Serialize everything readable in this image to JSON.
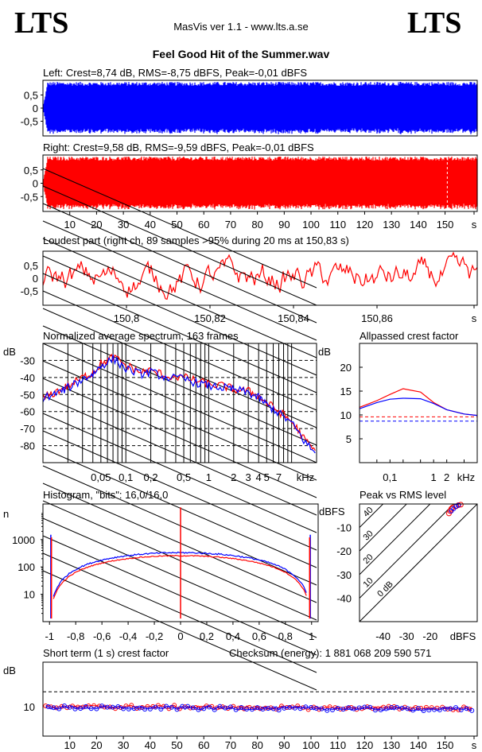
{
  "header": {
    "logo_left": "LTS",
    "logo_right": "LTS",
    "app_title": "MasVis ver 1.1 - www.lts.a.se",
    "file_title": "Feel Good Hit of the Summer.wav"
  },
  "colors": {
    "left": "#0000ff",
    "right": "#ff0000",
    "grid": "#000000",
    "background": "#ffffff"
  },
  "chart_data": [
    {
      "id": "left_wave",
      "type": "area",
      "title": "Left: Crest=8,74 dB, RMS=-8,75 dBFS, Peak=-0,01 dBFS",
      "yticks": [
        "0,5",
        "0",
        "-0,5"
      ],
      "ylim": [
        -1,
        1
      ],
      "xlim": [
        0,
        162
      ],
      "color": "#0000ff",
      "description_series": "waveform"
    },
    {
      "id": "right_wave",
      "type": "area",
      "title": "Right: Crest=9,58 dB, RMS=-9,59 dBFS, Peak=-0,01 dBFS",
      "yticks": [
        "0,5",
        "0",
        "-0,5"
      ],
      "ylim": [
        -1,
        1
      ],
      "xlim": [
        0,
        162
      ],
      "xticks": [
        "10",
        "20",
        "30",
        "40",
        "50",
        "60",
        "70",
        "80",
        "90",
        "100",
        "110",
        "120",
        "130",
        "140",
        "150",
        "s"
      ],
      "marker_x": 150.83,
      "color": "#ff0000"
    },
    {
      "id": "loudest",
      "type": "line",
      "title": "Loudest part (right ch, 89 samples >95% during 20 ms at 150,83 s)",
      "yticks": [
        "0,5",
        "0",
        "-0,5"
      ],
      "ylim": [
        -1,
        1
      ],
      "xlim": [
        150.78,
        150.884
      ],
      "xticks": [
        "150,8",
        "150,82",
        "150,84",
        "150,86",
        "s"
      ],
      "color": "#ff0000"
    },
    {
      "id": "spectrum",
      "type": "line",
      "title": "Normalized average spectrum, 163 frames",
      "ylabel": "dB",
      "yticks": [
        "-30",
        "-40",
        "-50",
        "-60",
        "-70",
        "-80"
      ],
      "ylim": [
        -90,
        -20
      ],
      "xticks": [
        "0,05",
        "0,1",
        "0,2",
        "0,5",
        "1",
        "2",
        "3",
        "4",
        "5",
        "7",
        "kHz"
      ],
      "x_scale": "log",
      "x": [
        0.01,
        0.015,
        0.02,
        0.03,
        0.04,
        0.05,
        0.07,
        0.1,
        0.15,
        0.2,
        0.3,
        0.5,
        0.7,
        1,
        1.5,
        2,
        3,
        4,
        5,
        7,
        10,
        14,
        20
      ],
      "series": [
        {
          "color": "#ff0000",
          "values": [
            -52,
            -48,
            -45,
            -40,
            -37,
            -32,
            -28,
            -33,
            -37,
            -36,
            -39,
            -40,
            -42,
            -44,
            -45,
            -47,
            -48,
            -51,
            -55,
            -60,
            -66,
            -76,
            -85
          ]
        },
        {
          "color": "#0000ff",
          "values": [
            -52,
            -49,
            -46,
            -41,
            -38,
            -33,
            -29,
            -35,
            -38,
            -37,
            -40,
            -41,
            -43,
            -45,
            -46,
            -47,
            -49,
            -52,
            -56,
            -61,
            -67,
            -77,
            -86
          ]
        }
      ]
    },
    {
      "id": "allpass",
      "type": "line",
      "title": "Allpassed crest factor",
      "ylabel": "dB",
      "yticks": [
        "20",
        "15",
        "10",
        "5"
      ],
      "ylim": [
        0,
        25
      ],
      "xticks": [
        "0,1",
        "1",
        "2",
        "kHz"
      ],
      "x_scale": "log",
      "x": [
        0.02,
        0.05,
        0.1,
        0.2,
        0.5,
        1,
        2,
        5,
        10
      ],
      "series": [
        {
          "color": "#ff0000",
          "values": [
            11.6,
            13,
            14.3,
            15.5,
            14.8,
            12.6,
            11.1,
            10.2,
            9.9
          ]
        },
        {
          "color": "#0000ff",
          "values": [
            11.3,
            12.6,
            13.3,
            13.5,
            13.4,
            12.4,
            11.1,
            10.2,
            9.9
          ]
        }
      ],
      "reference_lines": [
        {
          "color": "#ff0000",
          "value": 9.6
        },
        {
          "color": "#0000ff",
          "value": 8.7
        }
      ]
    },
    {
      "id": "histogram",
      "type": "line",
      "title": "Histogram, \"bits\": 16,0/16,0",
      "ylabel": "n",
      "yticks": [
        "1000",
        "100",
        "10"
      ],
      "y_scale": "log",
      "xticks": [
        "-1",
        "-0,8",
        "-0,6",
        "-0,4",
        "-0,2",
        "0",
        "0,2",
        "0,4",
        "0,6",
        "0,8",
        "1"
      ],
      "xlim": [
        -1.05,
        1.05
      ]
    },
    {
      "id": "peak_rms",
      "type": "scatter",
      "title": "Peak vs RMS level",
      "ylabel": "dBFS",
      "xlabel": "dBFS",
      "yticks": [
        "-10",
        "-20",
        "-30",
        "-40"
      ],
      "xticks": [
        "-40",
        "-30",
        "-20"
      ],
      "xlim": [
        -50,
        0
      ],
      "ylim": [
        -50,
        0
      ],
      "diag_labels": [
        "40",
        "30",
        "20",
        "10",
        "0 dB"
      ],
      "points_red": [
        [
          -11,
          -2
        ],
        [
          -10.5,
          -1.5
        ],
        [
          -9,
          -1
        ],
        [
          -8,
          -0.5
        ],
        [
          -7,
          -0.3
        ],
        [
          -12,
          -4
        ],
        [
          -11.5,
          -3
        ]
      ],
      "points_blue": [
        [
          -10,
          -2
        ],
        [
          -9,
          -1
        ],
        [
          -8,
          -0.5
        ],
        [
          -11,
          -3
        ]
      ]
    },
    {
      "id": "short_term",
      "type": "line",
      "title": "Short term (1 s) crest factor",
      "checksum_label": "Checksum (energy):  1 881 068 209 590 571",
      "ylabel": "dB",
      "yticks": [
        "10"
      ],
      "ylim": [
        0,
        25
      ],
      "xlim": [
        0,
        162
      ],
      "xticks": [
        "10",
        "20",
        "30",
        "40",
        "50",
        "60",
        "70",
        "80",
        "90",
        "100",
        "110",
        "120",
        "130",
        "140",
        "150",
        "s"
      ],
      "dashed_ref": 15,
      "series": [
        {
          "color": "#ff0000",
          "level": 10
        },
        {
          "color": "#0000ff",
          "level": 9.7
        }
      ]
    }
  ]
}
